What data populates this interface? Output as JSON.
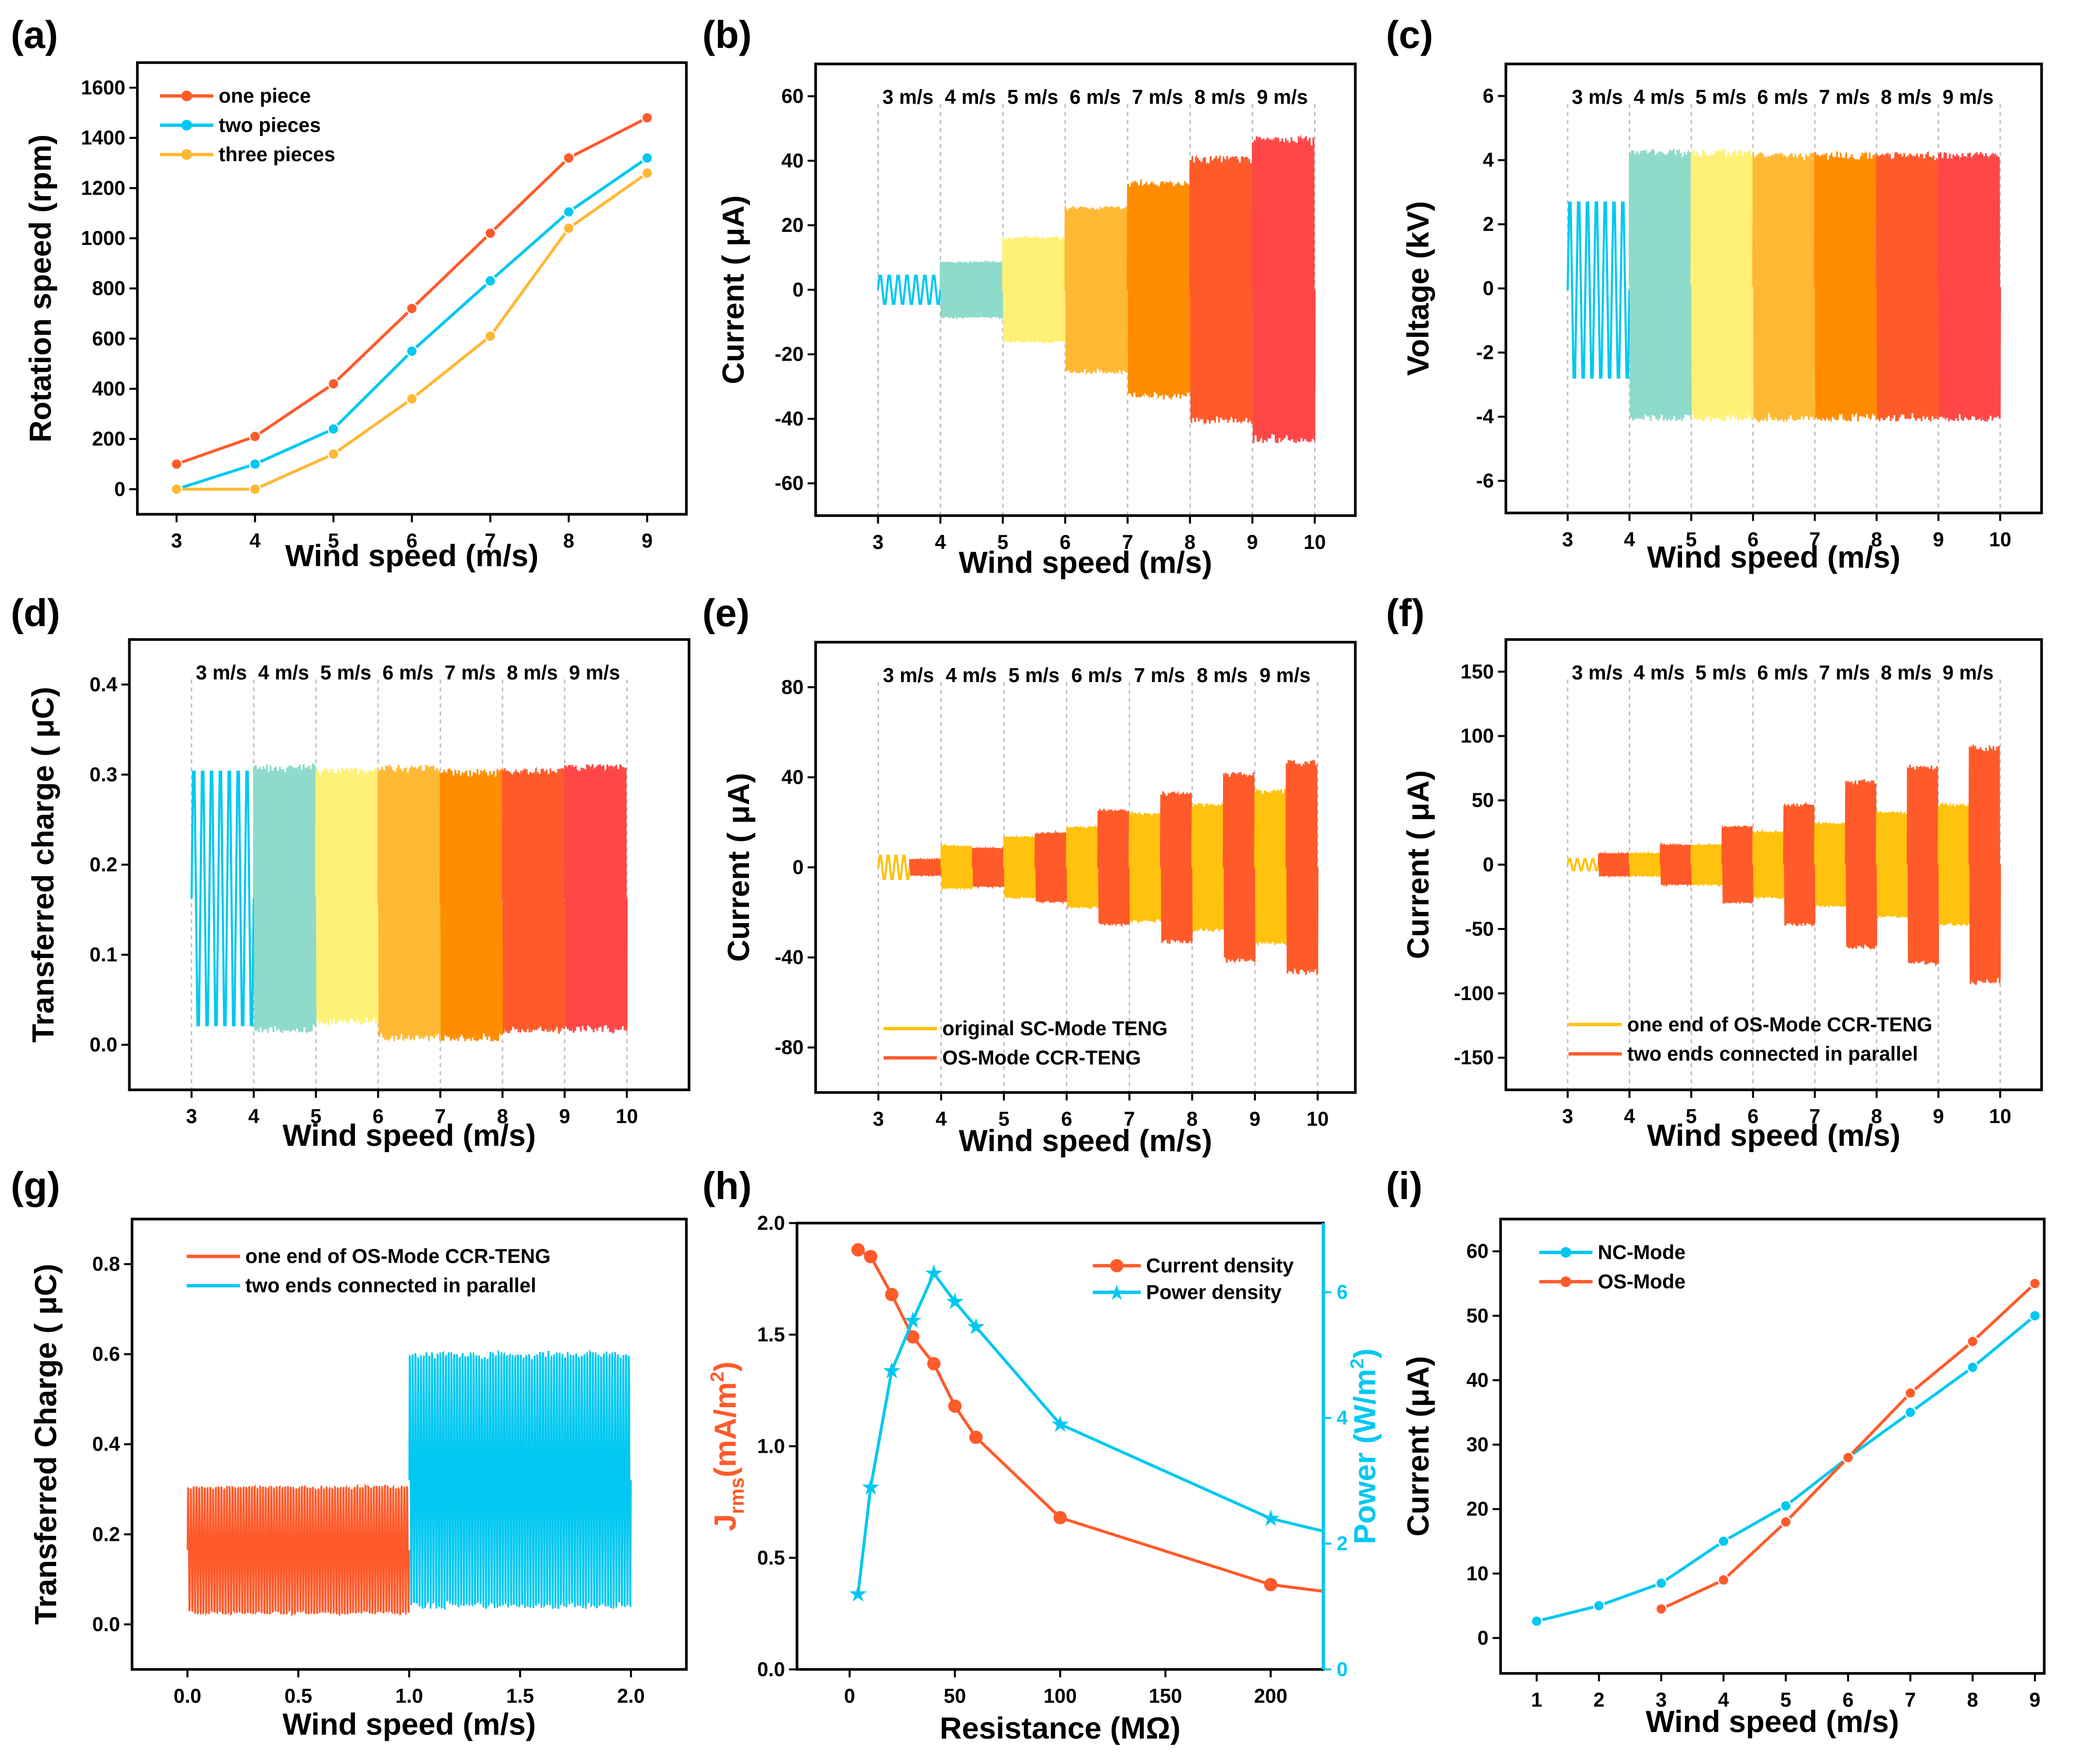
{
  "colors": {
    "cyan": "#00C8F0",
    "teal": "#8EDACB",
    "yellow": "#FFF176",
    "amber": "#FFB833",
    "orange": "#FF8C00",
    "red_orange": "#FF5A2A",
    "red": "#FF4646",
    "sc_yellow": "#FFC20E"
  },
  "chart_data": [
    {
      "panel": "(a)",
      "type": "line",
      "xlabel": "Wind speed (m/s)",
      "ylabel": "Rotation speed (rpm)",
      "xlim": [
        2.5,
        9.5
      ],
      "ylim": [
        -100,
        1700
      ],
      "xticks": [
        3,
        4,
        5,
        6,
        7,
        8,
        9
      ],
      "yticks": [
        0,
        200,
        400,
        600,
        800,
        1000,
        1200,
        1400,
        1600
      ],
      "legend": "top-left",
      "grid": false,
      "x": [
        3,
        4,
        5,
        6,
        7,
        8,
        9
      ],
      "series": [
        {
          "name": "one piece",
          "color": "#FF5A2A",
          "values": [
            100,
            210,
            420,
            720,
            1020,
            1320,
            1480
          ]
        },
        {
          "name": "two pieces",
          "color": "#00C8F0",
          "values": [
            0,
            100,
            240,
            550,
            830,
            1105,
            1320
          ]
        },
        {
          "name": "three pieces",
          "color": "#FFB833",
          "values": [
            0,
            0,
            140,
            360,
            610,
            1040,
            1260
          ]
        }
      ]
    },
    {
      "panel": "(b)",
      "type": "line",
      "xlabel": "Wind speed (m/s)",
      "ylabel": "Current ( μA)",
      "xlim": [
        2,
        10.65
      ],
      "ylim": [
        -70,
        70
      ],
      "xticks": [
        3,
        4,
        5,
        6,
        7,
        8,
        9,
        10
      ],
      "yticks": [
        -60,
        -40,
        -20,
        0,
        20,
        40,
        60
      ],
      "speed_labels": [
        "3 m/s",
        "4 m/s",
        "5 m/s",
        "6 m/s",
        "7 m/s",
        "8 m/s",
        "9 m/s"
      ],
      "grid": "dashed vertical at integer x",
      "segments": [
        {
          "x": [
            3,
            4
          ],
          "range": [
            -5,
            5
          ],
          "color": "#00C8F0"
        },
        {
          "x": [
            4,
            5
          ],
          "range": [
            -10,
            10
          ],
          "color": "#8EDACB"
        },
        {
          "x": [
            5,
            6
          ],
          "range": [
            -19,
            19
          ],
          "color": "#FFF176"
        },
        {
          "x": [
            6,
            7
          ],
          "range": [
            -30,
            30
          ],
          "color": "#FFB833"
        },
        {
          "x": [
            7,
            8
          ],
          "range": [
            -39,
            39
          ],
          "color": "#FF8C00"
        },
        {
          "x": [
            8,
            9
          ],
          "range": [
            -48,
            48
          ],
          "color": "#FF5A2A"
        },
        {
          "x": [
            9,
            10
          ],
          "range": [
            -55,
            55
          ],
          "color": "#FF4646"
        }
      ]
    },
    {
      "panel": "(c)",
      "type": "line",
      "xlabel": "Wind speed (m/s)",
      "ylabel": "Voltage (kV)",
      "xlim": [
        2,
        10.67
      ],
      "ylim": [
        -7,
        7
      ],
      "xticks": [
        3,
        4,
        5,
        6,
        7,
        8,
        9,
        10
      ],
      "yticks": [
        -6,
        -4,
        -2,
        0,
        2,
        4,
        6
      ],
      "speed_labels": [
        "3 m/s",
        "4 m/s",
        "5 m/s",
        "6 m/s",
        "7 m/s",
        "8 m/s",
        "9 m/s"
      ],
      "grid": "dashed vertical at integer x",
      "segments": [
        {
          "x": [
            3,
            4
          ],
          "range": [
            -3.2,
            3.1
          ],
          "color": "#00C8F0"
        },
        {
          "x": [
            4,
            5
          ],
          "range": [
            -4.8,
            5.0
          ],
          "color": "#8EDACB"
        },
        {
          "x": [
            5,
            6
          ],
          "range": [
            -4.8,
            5.0
          ],
          "color": "#FFF176"
        },
        {
          "x": [
            6,
            7
          ],
          "range": [
            -4.8,
            4.9
          ],
          "color": "#FFB833"
        },
        {
          "x": [
            7,
            8
          ],
          "range": [
            -4.8,
            4.9
          ],
          "color": "#FF8C00"
        },
        {
          "x": [
            8,
            9
          ],
          "range": [
            -4.8,
            4.9
          ],
          "color": "#FF5A2A"
        },
        {
          "x": [
            9,
            10
          ],
          "range": [
            -4.8,
            4.9
          ],
          "color": "#FF4646"
        }
      ]
    },
    {
      "panel": "(d)",
      "type": "line",
      "xlabel": "Wind speed (m/s)",
      "ylabel": "Transferred charge ( μC)",
      "xlim": [
        2,
        11
      ],
      "ylim": [
        -0.05,
        0.45
      ],
      "xticks": [
        3,
        4,
        5,
        6,
        7,
        8,
        9,
        10
      ],
      "yticks": [
        0.0,
        0.1,
        0.2,
        0.3,
        0.4
      ],
      "speed_labels": [
        "3 m/s",
        "4 m/s",
        "5 m/s",
        "6 m/s",
        "7 m/s",
        "8 m/s",
        "9 m/s"
      ],
      "grid": "dashed vertical at integer x",
      "segments": [
        {
          "x": [
            3,
            4
          ],
          "range": [
            0,
            0.325
          ],
          "color": "#00C8F0"
        },
        {
          "x": [
            4,
            5
          ],
          "range": [
            -0.01,
            0.335
          ],
          "color": "#8EDACB"
        },
        {
          "x": [
            5,
            6
          ],
          "range": [
            0,
            0.33
          ],
          "color": "#FFF176"
        },
        {
          "x": [
            6,
            7
          ],
          "range": [
            -0.02,
            0.335
          ],
          "color": "#FFB833"
        },
        {
          "x": [
            7,
            8
          ],
          "range": [
            -0.02,
            0.33
          ],
          "color": "#FF8C00"
        },
        {
          "x": [
            8,
            9
          ],
          "range": [
            -0.01,
            0.33
          ],
          "color": "#FF5A2A"
        },
        {
          "x": [
            9,
            10
          ],
          "range": [
            -0.01,
            0.335
          ],
          "color": "#FF4646"
        }
      ]
    },
    {
      "panel": "(e)",
      "type": "line",
      "xlabel": "Wind speed (m/s)",
      "ylabel": "Current ( μA)",
      "xlim": [
        2,
        10.6
      ],
      "ylim": [
        -100,
        100
      ],
      "xticks": [
        3,
        4,
        5,
        6,
        7,
        8,
        9,
        10
      ],
      "yticks": [
        -80,
        -40,
        0,
        40,
        80
      ],
      "speed_labels": [
        "3 m/s",
        "4 m/s",
        "5 m/s",
        "6 m/s",
        "7 m/s",
        "8 m/s",
        "9 m/s"
      ],
      "grid": "dashed vertical at integer x",
      "legend": "bottom-left",
      "series_names": [
        "original SC-Mode TENG",
        "OS-Mode CCR-TENG"
      ],
      "series_colors": [
        "#FFC20E",
        "#FF5A2A"
      ],
      "segments": [
        {
          "x": [
            3,
            3.5
          ],
          "range": [
            -6,
            6
          ],
          "series": 0
        },
        {
          "x": [
            3.5,
            4
          ],
          "range": [
            -4,
            4
          ],
          "series": 1
        },
        {
          "x": [
            4,
            4.5
          ],
          "range": [
            -11,
            11
          ],
          "series": 0
        },
        {
          "x": [
            4.5,
            5
          ],
          "range": [
            -10,
            10
          ],
          "series": 1
        },
        {
          "x": [
            5,
            5.5
          ],
          "range": [
            -16,
            16
          ],
          "series": 0
        },
        {
          "x": [
            5.5,
            6
          ],
          "range": [
            -18,
            18
          ],
          "series": 1
        },
        {
          "x": [
            6,
            6.5
          ],
          "range": [
            -21,
            21
          ],
          "series": 0
        },
        {
          "x": [
            6.5,
            7
          ],
          "range": [
            -30,
            30
          ],
          "series": 1
        },
        {
          "x": [
            7,
            7.5
          ],
          "range": [
            -28,
            28
          ],
          "series": 0
        },
        {
          "x": [
            7.5,
            8
          ],
          "range": [
            -39,
            39
          ],
          "series": 1
        },
        {
          "x": [
            8,
            8.5
          ],
          "range": [
            -33,
            33
          ],
          "series": 0
        },
        {
          "x": [
            8.5,
            9
          ],
          "range": [
            -49,
            49
          ],
          "series": 1
        },
        {
          "x": [
            9,
            9.5
          ],
          "range": [
            -40,
            40
          ],
          "series": 0
        },
        {
          "x": [
            9.5,
            10
          ],
          "range": [
            -55,
            55
          ],
          "series": 1
        }
      ]
    },
    {
      "panel": "(f)",
      "type": "line",
      "xlabel": "Wind speed (m/s)",
      "ylabel": "Current ( μA)",
      "xlim": [
        2,
        10.67
      ],
      "ylim": [
        -175,
        175
      ],
      "xticks": [
        3,
        4,
        5,
        6,
        7,
        8,
        9,
        10
      ],
      "yticks": [
        -150,
        -100,
        -50,
        0,
        50,
        100,
        150
      ],
      "speed_labels": [
        "3 m/s",
        "4 m/s",
        "5 m/s",
        "6 m/s",
        "7 m/s",
        "8 m/s",
        "9 m/s"
      ],
      "grid": "dashed vertical at integer x",
      "legend": "bottom-left",
      "series_names": [
        "one end of OS-Mode CCR-TENG",
        "two ends connected in parallel"
      ],
      "series_colors": [
        "#FFC20E",
        "#FF5A2A"
      ],
      "segments": [
        {
          "x": [
            3,
            3.5
          ],
          "range": [
            -5,
            5
          ],
          "series": 0
        },
        {
          "x": [
            3.5,
            4
          ],
          "range": [
            -10,
            10
          ],
          "series": 1
        },
        {
          "x": [
            4,
            4.5
          ],
          "range": [
            -10,
            10
          ],
          "series": 0
        },
        {
          "x": [
            4.5,
            5
          ],
          "range": [
            -18,
            18
          ],
          "series": 1
        },
        {
          "x": [
            5,
            5.5
          ],
          "range": [
            -18,
            18
          ],
          "series": 0
        },
        {
          "x": [
            5.5,
            6
          ],
          "range": [
            -35,
            35
          ],
          "series": 1
        },
        {
          "x": [
            6,
            6.5
          ],
          "range": [
            -30,
            30
          ],
          "series": 0
        },
        {
          "x": [
            6.5,
            7
          ],
          "range": [
            -55,
            55
          ],
          "series": 1
        },
        {
          "x": [
            7,
            7.5
          ],
          "range": [
            -38,
            38
          ],
          "series": 0
        },
        {
          "x": [
            7.5,
            8
          ],
          "range": [
            -76,
            76
          ],
          "series": 1
        },
        {
          "x": [
            8,
            8.5
          ],
          "range": [
            -48,
            48
          ],
          "series": 0
        },
        {
          "x": [
            8.5,
            9
          ],
          "range": [
            -90,
            90
          ],
          "series": 1
        },
        {
          "x": [
            9,
            9.5
          ],
          "range": [
            -55,
            55
          ],
          "series": 0
        },
        {
          "x": [
            9.5,
            10
          ],
          "range": [
            -108,
            108
          ],
          "series": 1
        }
      ]
    },
    {
      "panel": "(g)",
      "type": "line",
      "xlabel": "Wind speed (m/s)",
      "ylabel": "Transferred Charge ( μC)",
      "xlim": [
        -0.25,
        2.25
      ],
      "ylim": [
        -0.1,
        0.9
      ],
      "xticks": [
        0.0,
        0.5,
        1.0,
        1.5,
        2.0
      ],
      "yticks": [
        0.0,
        0.2,
        0.4,
        0.6,
        0.8
      ],
      "legend": "top-left",
      "series_names": [
        "one end of OS-Mode CCR-TENG",
        "two ends connected in parallel"
      ],
      "series_colors": [
        "#FF5A2A",
        "#00C8F0"
      ],
      "segments": [
        {
          "x": [
            0,
            1
          ],
          "range": [
            0.0,
            0.33
          ],
          "series": 0
        },
        {
          "x": [
            1,
            2
          ],
          "range": [
            -0.01,
            0.65
          ],
          "series": 1
        }
      ]
    },
    {
      "panel": "(h)",
      "type": "line",
      "xlabel": "Resistance (MΩ)",
      "ylabel": "Jrms(mA/m2)",
      "ylabel_parts": [
        "J",
        "rms",
        "(mA/m",
        "2",
        ")"
      ],
      "y2label_parts": [
        "Power (W/m",
        "2",
        ")"
      ],
      "xlim": [
        -25,
        225
      ],
      "ylim": [
        0,
        2.0
      ],
      "y2lim": [
        0,
        7.1
      ],
      "xticks": [
        0,
        50,
        100,
        150,
        200
      ],
      "yticks": [
        0.0,
        0.5,
        1.0,
        1.5,
        2.0
      ],
      "y2ticks": [
        0,
        2,
        4,
        6
      ],
      "legend": "top-right",
      "series": [
        {
          "name": "Current density",
          "color": "#FF5A2A",
          "axis": "left",
          "marker": "circle",
          "x": [
            4,
            10,
            20,
            30,
            40,
            50,
            60,
            100,
            200
          ],
          "values": [
            1.88,
            1.85,
            1.68,
            1.49,
            1.37,
            1.18,
            1.04,
            0.68,
            0.38
          ],
          "tail": [
            225,
            0.35
          ]
        },
        {
          "name": "Power density",
          "color": "#00C8F0",
          "axis": "right",
          "marker": "star",
          "x": [
            4,
            10,
            20,
            30,
            40,
            50,
            60,
            100,
            200
          ],
          "values": [
            1.2,
            2.9,
            4.75,
            5.55,
            6.3,
            5.85,
            5.45,
            3.9,
            2.4
          ],
          "tail": [
            225,
            2.2
          ]
        }
      ]
    },
    {
      "panel": "(i)",
      "type": "line",
      "xlabel": "Wind speed (m/s)",
      "ylabel": "Current (μA)",
      "xlim": [
        0.42,
        9.15
      ],
      "ylim": [
        -5.5,
        65
      ],
      "xticks": [
        1,
        2,
        3,
        4,
        5,
        6,
        7,
        8,
        9
      ],
      "yticks": [
        0,
        10,
        20,
        30,
        40,
        50,
        60
      ],
      "legend": "top-left",
      "series": [
        {
          "name": "NC-Mode",
          "color": "#00C8F0",
          "x": [
            1,
            2,
            3,
            4,
            5,
            6,
            7,
            8,
            9
          ],
          "values": [
            2.6,
            5,
            8.5,
            15,
            20.5,
            28,
            35,
            42,
            50
          ]
        },
        {
          "name": "OS-Mode",
          "color": "#FF5A2A",
          "x": [
            3,
            4,
            5,
            6,
            7,
            8,
            9
          ],
          "values": [
            4.5,
            9,
            18,
            28,
            38,
            46,
            55
          ]
        }
      ]
    }
  ]
}
